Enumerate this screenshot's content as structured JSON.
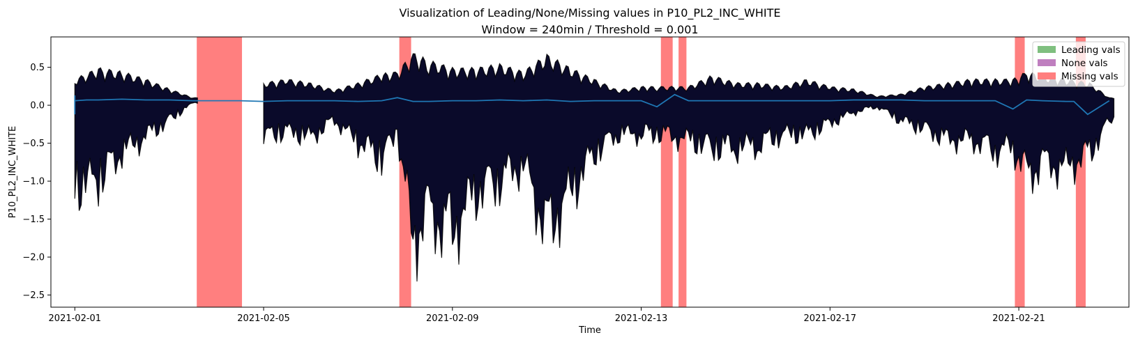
{
  "chart_data": {
    "type": "line",
    "title": "Visualization of Leading/None/Missing values in P10_PL2_INC_WHITE",
    "subtitle": "Window = 240min / Threshold = 0.001",
    "xlabel": "Time",
    "ylabel": "P10_PL2_INC_WHITE",
    "xlim": [
      "2020-01-31T00:00",
      "2021-02-23T11:00"
    ],
    "ylim": [
      -2.66,
      0.9
    ],
    "x_ticks": [
      "2021-02-01",
      "2021-02-05",
      "2021-02-09",
      "2021-02-13",
      "2021-02-17",
      "2021-02-21"
    ],
    "y_ticks": [
      "0.5",
      "0.0",
      "−0.5",
      "−1.0",
      "−1.5",
      "−2.0",
      "−2.5"
    ],
    "legend": {
      "position": "top-right",
      "entries": [
        {
          "label": "Leading vals",
          "color": "#7fbf7f"
        },
        {
          "label": "None vals",
          "color": "#bf7fbf"
        },
        {
          "label": "Missing vals",
          "color": "#ff7f7f"
        }
      ]
    },
    "missing_intervals": [
      {
        "start": "2021-02-03T14:00",
        "end": "2021-02-04T13:00"
      },
      {
        "start": "2021-02-07T21:00",
        "end": "2021-02-08T03:00"
      },
      {
        "start": "2021-02-13T10:00",
        "end": "2021-02-13T16:00"
      },
      {
        "start": "2021-02-13T19:00",
        "end": "2021-02-13T23:00"
      },
      {
        "start": "2021-02-20T22:00",
        "end": "2021-02-21T03:00"
      },
      {
        "start": "2021-02-22T05:00",
        "end": "2021-02-22T10:00"
      }
    ],
    "data_extent": {
      "start": "2021-02-01T00:00",
      "end": "2021-02-22T22:00"
    },
    "series": [
      {
        "name": "",
        "kind": "rolling-mean",
        "color": "#1f77b4",
        "x": [
          "2021-02-01T00:00",
          "2021-02-01T06:00",
          "2021-02-01T12:00",
          "2021-02-02T00:00",
          "2021-02-02T12:00",
          "2021-02-03T00:00",
          "2021-02-03T12:00",
          "2021-02-04T00:00",
          "2021-02-04T12:00",
          "2021-02-05T00:00",
          "2021-02-05T12:00",
          "2021-02-06T00:00",
          "2021-02-06T12:00",
          "2021-02-07T00:00",
          "2021-02-07T12:00",
          "2021-02-07T20:00",
          "2021-02-08T04:00",
          "2021-02-08T12:00",
          "2021-02-09T00:00",
          "2021-02-09T12:00",
          "2021-02-10T00:00",
          "2021-02-10T12:00",
          "2021-02-11T00:00",
          "2021-02-11T12:00",
          "2021-02-12T00:00",
          "2021-02-12T12:00",
          "2021-02-13T00:00",
          "2021-02-13T08:00",
          "2021-02-13T17:00",
          "2021-02-14T00:00",
          "2021-02-14T12:00",
          "2021-02-15T00:00",
          "2021-02-15T12:00",
          "2021-02-16T00:00",
          "2021-02-16T12:00",
          "2021-02-17T00:00",
          "2021-02-17T12:00",
          "2021-02-18T00:00",
          "2021-02-18T12:00",
          "2021-02-19T00:00",
          "2021-02-19T12:00",
          "2021-02-20T00:00",
          "2021-02-20T12:00",
          "2021-02-20T21:00",
          "2021-02-21T04:00",
          "2021-02-21T12:00",
          "2021-02-22T00:00",
          "2021-02-22T04:00",
          "2021-02-22T11:00",
          "2021-02-22T22:00"
        ],
        "y": [
          0.06,
          0.07,
          0.07,
          0.08,
          0.07,
          0.07,
          0.06,
          0.06,
          0.06,
          0.05,
          0.06,
          0.06,
          0.06,
          0.05,
          0.06,
          0.1,
          0.05,
          0.05,
          0.06,
          0.06,
          0.07,
          0.06,
          0.07,
          0.05,
          0.06,
          0.06,
          0.06,
          -0.02,
          0.14,
          0.06,
          0.06,
          0.06,
          0.06,
          0.06,
          0.06,
          0.06,
          0.07,
          0.07,
          0.07,
          0.06,
          0.06,
          0.06,
          0.06,
          -0.05,
          0.07,
          0.06,
          0.05,
          0.05,
          -0.12,
          0.06
        ]
      },
      {
        "name": "",
        "kind": "observations-envelope",
        "color": "#000000",
        "x": [
          "2021-02-01T00:00",
          "2021-02-01T12:00",
          "2021-02-02T00:00",
          "2021-02-02T12:00",
          "2021-02-03T00:00",
          "2021-02-03T12:00",
          "2021-02-04T12:00",
          "2021-02-05T00:00",
          "2021-02-05T12:00",
          "2021-02-06T00:00",
          "2021-02-06T12:00",
          "2021-02-07T00:00",
          "2021-02-07T12:00",
          "2021-02-07T20:00",
          "2021-02-08T04:00",
          "2021-02-08T12:00",
          "2021-02-09T00:00",
          "2021-02-09T12:00",
          "2021-02-10T00:00",
          "2021-02-10T12:00",
          "2021-02-11T00:00",
          "2021-02-11T12:00",
          "2021-02-12T00:00",
          "2021-02-12T12:00",
          "2021-02-13T00:00",
          "2021-02-13T08:00",
          "2021-02-14T00:00",
          "2021-02-14T12:00",
          "2021-02-15T00:00",
          "2021-02-15T12:00",
          "2021-02-16T00:00",
          "2021-02-16T12:00",
          "2021-02-17T00:00",
          "2021-02-17T12:00",
          "2021-02-18T00:00",
          "2021-02-18T12:00",
          "2021-02-19T00:00",
          "2021-02-19T12:00",
          "2021-02-20T00:00",
          "2021-02-20T12:00",
          "2021-02-20T21:00",
          "2021-02-21T04:00",
          "2021-02-21T12:00",
          "2021-02-22T00:00",
          "2021-02-22T12:00",
          "2021-02-22T22:00"
        ],
        "max": [
          0.35,
          0.5,
          0.45,
          0.35,
          0.22,
          0.1,
          0.1,
          0.3,
          0.35,
          0.3,
          0.2,
          0.3,
          0.42,
          0.45,
          0.7,
          0.6,
          0.5,
          0.5,
          0.55,
          0.45,
          0.68,
          0.5,
          0.35,
          0.2,
          0.25,
          0.25,
          0.25,
          0.4,
          0.3,
          0.3,
          0.25,
          0.35,
          0.25,
          0.22,
          0.12,
          0.15,
          0.25,
          0.3,
          0.35,
          0.35,
          0.35,
          0.45,
          0.4,
          0.35,
          0.3,
          0.1
        ],
        "min": [
          -1.5,
          -1.4,
          -0.9,
          -0.6,
          -0.3,
          0.02,
          0.02,
          -0.6,
          -0.5,
          -0.6,
          -0.3,
          -0.7,
          -1.0,
          -0.5,
          -2.45,
          -2.0,
          -2.3,
          -1.6,
          -1.4,
          -1.1,
          -2.3,
          -1.6,
          -0.9,
          -0.55,
          -0.55,
          -0.55,
          -0.65,
          -0.8,
          -0.8,
          -0.75,
          -0.55,
          -0.55,
          -0.35,
          -0.15,
          -0.05,
          -0.3,
          -0.45,
          -0.65,
          -0.65,
          -0.85,
          -0.8,
          -1.3,
          -1.1,
          -1.15,
          -0.9,
          -0.3
        ]
      }
    ]
  }
}
